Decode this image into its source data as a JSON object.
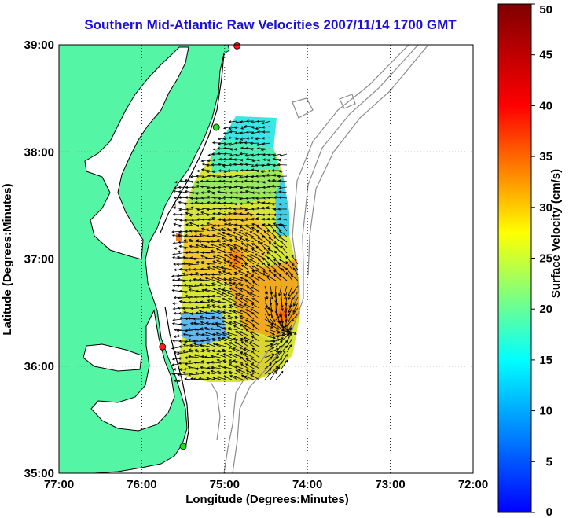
{
  "title": "Southern Mid-Atlantic Raw Velocities 2007/11/14 1700 GMT",
  "map": {
    "xlabel": "Longitude (Degrees:Minutes)",
    "ylabel": "Latitude (Degrees:Minutes)",
    "lon_range": [
      -77,
      -72
    ],
    "lat_range": [
      35,
      39
    ],
    "lon_ticks": [
      "77:00",
      "76:00",
      "75:00",
      "74:00",
      "73:00",
      "72:00"
    ],
    "lat_ticks": [
      "39:00",
      "38:00",
      "37:00",
      "36:00",
      "35:00"
    ],
    "grid": "dotted",
    "colors": {
      "land": "#55f5a6",
      "water": "#ffffff",
      "coast": "#000000",
      "bathymetry": "#8c8c8c",
      "title": "#1c0fd6"
    },
    "stations": [
      {
        "lon": -74.85,
        "lat": 38.99,
        "color": "#ff1a1a"
      },
      {
        "lon": -75.1,
        "lat": 38.23,
        "color": "#22dd22"
      },
      {
        "lon": -75.75,
        "lat": 36.18,
        "color": "#ff1a1a"
      },
      {
        "lon": -75.5,
        "lat": 35.25,
        "color": "#22dd22"
      }
    ]
  },
  "colorbar": {
    "label": "Surface Velocity (cm/s)",
    "min": 0,
    "max": 50,
    "ticks": [
      "0",
      "5",
      "10",
      "15",
      "20",
      "25",
      "30",
      "35",
      "40",
      "45",
      "50"
    ],
    "colormap": "jet"
  }
}
